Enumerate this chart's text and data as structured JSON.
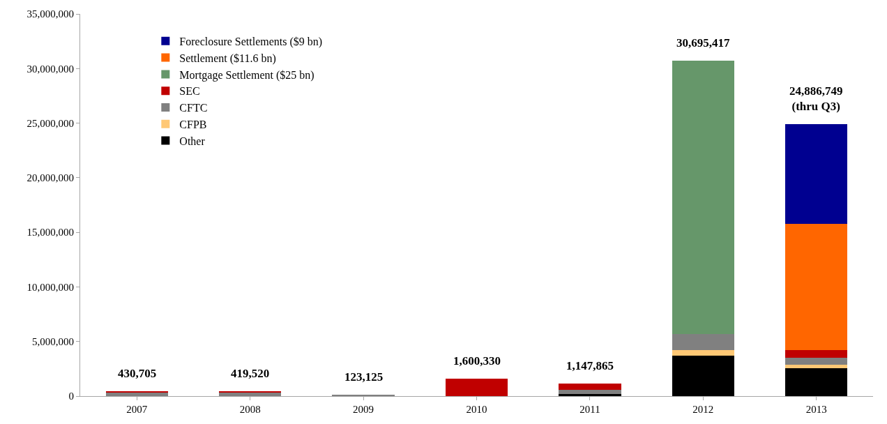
{
  "chart_data": {
    "type": "bar",
    "stacked": true,
    "categories": [
      "2007",
      "2008",
      "2009",
      "2010",
      "2011",
      "2012",
      "2013"
    ],
    "series": [
      {
        "name": "Other",
        "color": "#000000",
        "values": [
          0,
          0,
          0,
          0,
          200000,
          3700000,
          2550000
        ]
      },
      {
        "name": "CFPB",
        "color": "#ffc875",
        "values": [
          0,
          0,
          0,
          0,
          0,
          500000,
          300000
        ]
      },
      {
        "name": "CFTC",
        "color": "#808080",
        "values": [
          300000,
          370000,
          123125,
          0,
          400000,
          1500000,
          650000
        ]
      },
      {
        "name": "SEC",
        "color": "#c00000",
        "values": [
          130705,
          49520,
          0,
          1600330,
          547865,
          0,
          700000
        ]
      },
      {
        "name": "Mortgage Settlement ($25 bn)",
        "color": "#66976a",
        "values": [
          0,
          0,
          0,
          0,
          0,
          24995417,
          0
        ]
      },
      {
        "name": "Settlement ($11.6 bn)",
        "color": "#ff6600",
        "values": [
          0,
          0,
          0,
          0,
          0,
          0,
          11600000
        ]
      },
      {
        "name": "Foreclosure Settlements ($9 bn)",
        "color": "#000090",
        "values": [
          0,
          0,
          0,
          0,
          0,
          0,
          9086749
        ]
      }
    ],
    "totals": [
      "430,705",
      "419,520",
      "123,125",
      "1,600,330",
      "1,147,865",
      "30,695,417",
      "24,886,749\n(thru Q3)"
    ],
    "ylim": [
      0,
      35000000
    ],
    "yticks": [
      {
        "value": 0,
        "label": "0"
      },
      {
        "value": 5000000,
        "label": "5,000,000"
      },
      {
        "value": 10000000,
        "label": "10,000,000"
      },
      {
        "value": 15000000,
        "label": "15,000,000"
      },
      {
        "value": 20000000,
        "label": "20,000,000"
      },
      {
        "value": 25000000,
        "label": "25,000,000"
      },
      {
        "value": 30000000,
        "label": "30,000,000"
      },
      {
        "value": 35000000,
        "label": "35,000,000"
      }
    ],
    "grid": false,
    "legend": "top left"
  }
}
